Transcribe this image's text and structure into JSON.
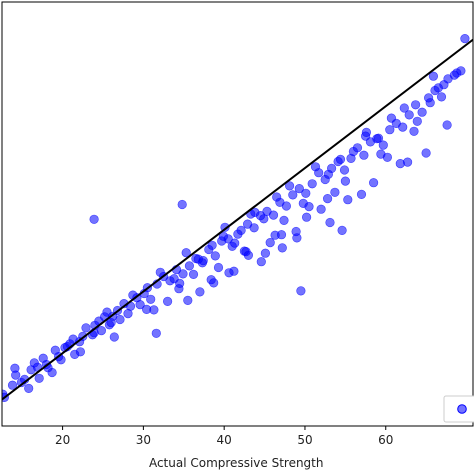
{
  "chart_data": {
    "type": "scatter",
    "title": "",
    "xlabel": "Actual Compressive Strength",
    "ylabel": "",
    "xlim": [
      12.5,
      70.8
    ],
    "ylim": [
      2.0,
      82.0
    ],
    "xticks": [
      "20",
      "30",
      "40",
      "50",
      "60"
    ],
    "xtick_values": [
      20,
      30,
      40,
      50,
      60
    ],
    "grid": false,
    "legend_placement": "bottom-right",
    "colors": {
      "points": "#0000ff",
      "fit_line": "#000000",
      "axes": "#000000"
    },
    "series": [
      {
        "kind": "points",
        "x": [
          12.6,
          13.8,
          14.2,
          15.3,
          16.1,
          16.9,
          17.6,
          18.2,
          19.1,
          19.8,
          20.6,
          21.3,
          22.1,
          22.9,
          23.7,
          24.5,
          25.2,
          26.0,
          26.8,
          27.6,
          28.4,
          29.2,
          30.1,
          30.9,
          31.7,
          32.5,
          33.3,
          34.1,
          34.9,
          35.7,
          36.5,
          37.3,
          38.1,
          38.9,
          39.7,
          40.5,
          41.3,
          42.1,
          42.9,
          43.7,
          44.5,
          45.3,
          46.1,
          46.9,
          47.7,
          48.5,
          49.3,
          50.1,
          50.9,
          51.7,
          52.5,
          53.3,
          54.1,
          54.9,
          55.7,
          56.5,
          57.3,
          58.1,
          58.9,
          59.7,
          60.5,
          61.3,
          62.1,
          62.9,
          63.7,
          64.5,
          65.3,
          66.1,
          66.9,
          67.7,
          68.5,
          69.3,
          14.9,
          16.5,
          18.7,
          20.3,
          22.5,
          24.0,
          25.5,
          27.1,
          28.7,
          30.5,
          32.1,
          33.8,
          35.3,
          36.8,
          38.5,
          40.1,
          41.7,
          43.3,
          44.9,
          46.5,
          48.1,
          49.8,
          51.3,
          52.9,
          54.4,
          56.0,
          57.6,
          59.1,
          60.7,
          62.3,
          63.9,
          65.5,
          67.2,
          68.8,
          17.1,
          21.5,
          23.9,
          26.4,
          29.6,
          31.3,
          34.5,
          37.0,
          39.3,
          41.0,
          43.0,
          45.7,
          47.4,
          50.5,
          53.7,
          15.8,
          19.5,
          24.8,
          28.1,
          33.0,
          36.2,
          38.4,
          42.5,
          44.6,
          47.1,
          49.0,
          52.0,
          55.3,
          58.5,
          61.8,
          65.0,
          67.6,
          23.9,
          34.8,
          37.4,
          39.9,
          41.2,
          43.8,
          47.2,
          49.5,
          52.8,
          54.6,
          57.5,
          60.2,
          62.7,
          65.9,
          14.1,
          20.9,
          25.8,
          31.6,
          35.5,
          40.6,
          45.1,
          48.9,
          53.1,
          57.0,
          12.8,
          18.0,
          22.2,
          26.2,
          30.4,
          34.4,
          38.7,
          42.7,
          46.3,
          50.2,
          55.0,
          59.4,
          63.5,
          66.5,
          69.8
        ],
        "y": [
          8.0,
          9.7,
          11.6,
          10.8,
          12.6,
          13.1,
          14.8,
          13.0,
          16.3,
          14.5,
          17.0,
          18.4,
          17.9,
          20.5,
          19.2,
          21.8,
          22.6,
          21.5,
          23.8,
          25.1,
          24.6,
          26.2,
          27.0,
          25.9,
          28.8,
          30.2,
          29.4,
          31.5,
          30.7,
          32.2,
          33.6,
          32.8,
          35.3,
          34.1,
          36.9,
          37.3,
          36.5,
          38.9,
          40.1,
          39.4,
          41.7,
          42.5,
          41.8,
          44.2,
          43.5,
          45.6,
          46.8,
          45.9,
          47.7,
          49.8,
          48.5,
          50.6,
          51.9,
          50.3,
          52.5,
          54.5,
          53.1,
          55.6,
          56.2,
          55.0,
          57.9,
          59.1,
          58.4,
          60.7,
          62.6,
          61.2,
          63.9,
          65.3,
          64.1,
          67.5,
          68.2,
          69.0,
          10.2,
          13.9,
          12.1,
          16.8,
          18.9,
          21.0,
          23.5,
          22.1,
          26.7,
          28.1,
          31.0,
          29.8,
          34.7,
          33.5,
          36.1,
          39.5,
          38.2,
          42.0,
          41.1,
          45.2,
          47.3,
          44.0,
          50.9,
          49.5,
          52.3,
          53.8,
          57.4,
          56.3,
          60.1,
          62.0,
          59.5,
          63.0,
          66.4,
          68.6,
          11.0,
          15.5,
          19.6,
          18.8,
          24.9,
          23.9,
          28.9,
          27.3,
          31.9,
          35.9,
          34.2,
          36.6,
          40.8,
          43.4,
          46.1,
          9.1,
          15.1,
          20.0,
          23.2,
          25.5,
          30.6,
          29.6,
          35.0,
          33.0,
          38.1,
          37.5,
          42.9,
          44.7,
          47.9,
          51.5,
          53.5,
          58.8,
          41.0,
          43.8,
          33.2,
          37.8,
          31.2,
          42.3,
          35.6,
          27.5,
          44.9,
          38.9,
          56.7,
          52.7,
          51.8,
          68.0,
          12.9,
          17.5,
          21.1,
          19.5,
          25.7,
          30.9,
          34.6,
          38.7,
          40.4,
          45.7,
          7.4,
          13.6,
          16.0,
          22.7,
          24.0,
          27.9,
          29.0,
          34.9,
          38.0,
          41.4,
          48.2,
          53.3,
          57.6,
          65.8,
          75.1
        ]
      },
      {
        "kind": "line",
        "x": [
          12.5,
          70.8
        ],
        "y": [
          7.0,
          74.9
        ]
      }
    ]
  },
  "legend": {
    "marker_color": "#0000ff",
    "label": ""
  }
}
